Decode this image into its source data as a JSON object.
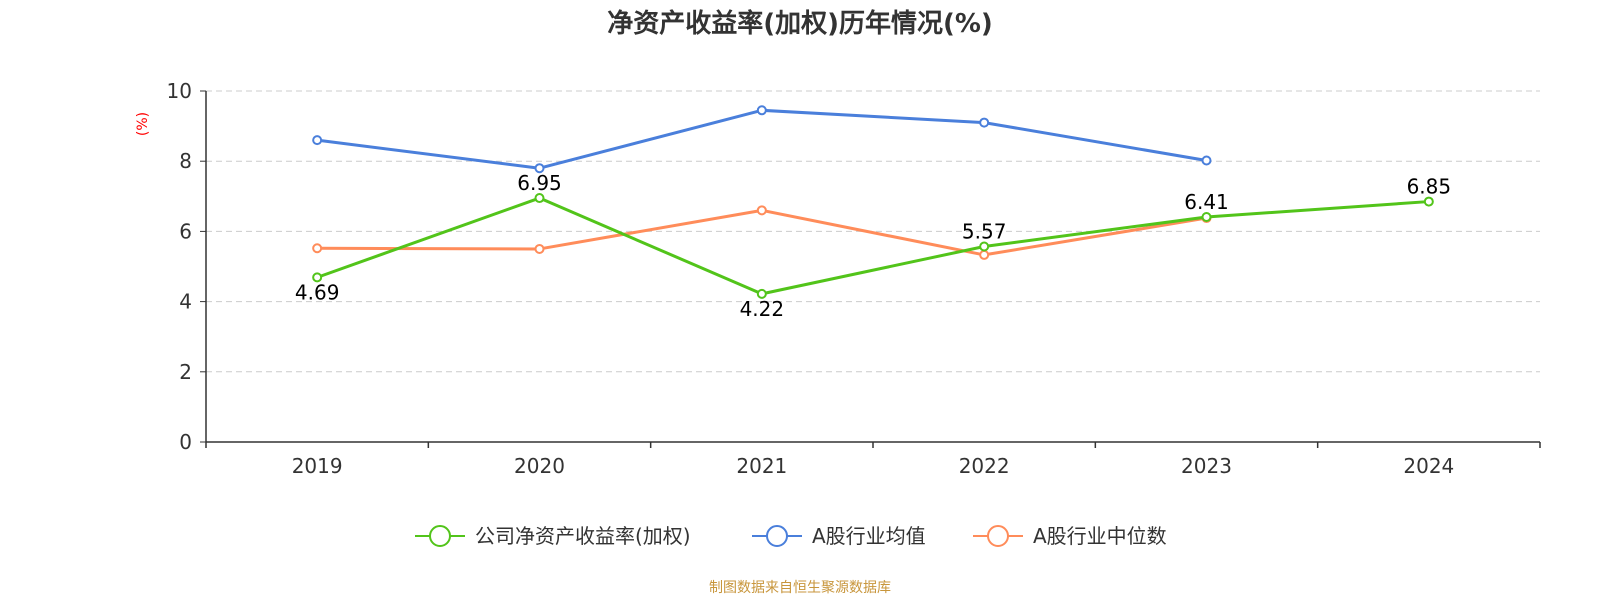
{
  "chart_data": {
    "type": "line",
    "title": "净资产收益率(加权)历年情况(%)",
    "ylabel": "(%)",
    "categories": [
      "2019",
      "2020",
      "2021",
      "2022",
      "2023",
      "2024"
    ],
    "ylim": [
      0,
      10
    ],
    "yticks": [
      0,
      2,
      4,
      6,
      8,
      10
    ],
    "grid": true,
    "legend_position": "bottom",
    "series": [
      {
        "name": "公司净资产收益率(加权)",
        "color": "#52c41a",
        "values": [
          4.69,
          6.95,
          4.22,
          5.57,
          6.41,
          6.85
        ],
        "labels": [
          "4.69",
          "6.95",
          "4.22",
          "5.57",
          "6.41",
          "6.85"
        ]
      },
      {
        "name": "A股行业均值",
        "color": "#4a7fdb",
        "values": [
          8.6,
          7.8,
          9.45,
          9.1,
          8.02,
          null
        ]
      },
      {
        "name": "A股行业中位数",
        "color": "#ff8c5a",
        "values": [
          5.52,
          5.5,
          6.6,
          5.33,
          6.38,
          null
        ]
      }
    ]
  },
  "source": "制图数据来自恒生聚源数据库"
}
